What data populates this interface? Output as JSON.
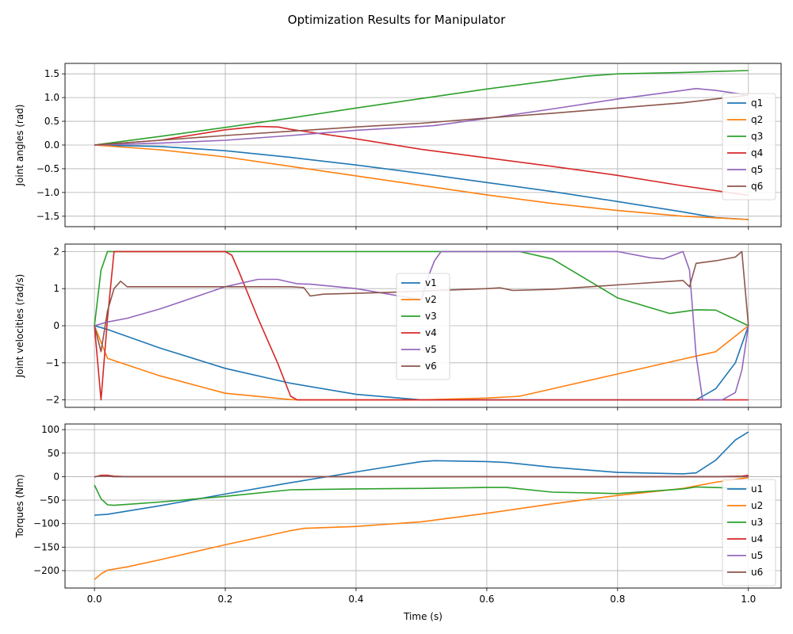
{
  "chart_data": {
    "title": "Optimization Results for Manipulator",
    "xlabel": "Time (s)",
    "panels": [
      {
        "type": "line",
        "ylabel": "Joint angles (rad)",
        "xlim": [
          -0.045,
          1.05
        ],
        "ylim": [
          -1.72,
          1.72
        ],
        "xticks": [
          0.0,
          0.2,
          0.4,
          0.6,
          0.8,
          1.0
        ],
        "xtick_labels": [
          "0.0",
          "0.2",
          "0.4",
          "0.6",
          "0.8",
          "1.0"
        ],
        "yticks": [
          -1.5,
          -1.0,
          -0.5,
          0.0,
          0.5,
          1.0,
          1.5
        ],
        "ytick_labels": [
          "−1.5",
          "−1.0",
          "−0.5",
          "0.0",
          "0.5",
          "1.0",
          "1.5"
        ],
        "show_xtick_labels": false,
        "grid": true,
        "legend_position": "right",
        "series": [
          {
            "name": "q1",
            "color": "#1f77b4",
            "x": [
              0,
              0.1,
              0.2,
              0.3,
              0.4,
              0.5,
              0.6,
              0.7,
              0.8,
              0.9,
              0.95,
              1.0
            ],
            "y": [
              0,
              -0.03,
              -0.12,
              -0.26,
              -0.42,
              -0.6,
              -0.79,
              -0.98,
              -1.19,
              -1.41,
              -1.53,
              -1.57
            ]
          },
          {
            "name": "q2",
            "color": "#ff7f0e",
            "x": [
              0,
              0.05,
              0.1,
              0.2,
              0.3,
              0.4,
              0.5,
              0.6,
              0.7,
              0.8,
              0.9,
              1.0
            ],
            "y": [
              0,
              -0.05,
              -0.1,
              -0.25,
              -0.45,
              -0.65,
              -0.85,
              -1.05,
              -1.23,
              -1.38,
              -1.5,
              -1.57
            ]
          },
          {
            "name": "q3",
            "color": "#2ca02c",
            "x": [
              0,
              0.1,
              0.2,
              0.3,
              0.4,
              0.5,
              0.6,
              0.7,
              0.75,
              0.8,
              0.9,
              1.0
            ],
            "y": [
              0,
              0.18,
              0.37,
              0.57,
              0.78,
              0.98,
              1.18,
              1.36,
              1.45,
              1.5,
              1.53,
              1.57
            ]
          },
          {
            "name": "q4",
            "color": "#d62728",
            "x": [
              0,
              0.1,
              0.2,
              0.25,
              0.28,
              0.3,
              0.4,
              0.5,
              0.6,
              0.7,
              0.8,
              0.9,
              1.0
            ],
            "y": [
              0,
              0.1,
              0.32,
              0.39,
              0.38,
              0.33,
              0.13,
              -0.09,
              -0.27,
              -0.45,
              -0.64,
              -0.86,
              -1.06
            ]
          },
          {
            "name": "q5",
            "color": "#9467bd",
            "x": [
              0,
              0.1,
              0.2,
              0.3,
              0.4,
              0.5,
              0.52,
              0.6,
              0.7,
              0.8,
              0.9,
              0.92,
              0.95,
              1.0
            ],
            "y": [
              0,
              0.04,
              0.1,
              0.2,
              0.31,
              0.39,
              0.41,
              0.56,
              0.76,
              0.97,
              1.15,
              1.19,
              1.15,
              1.05
            ]
          },
          {
            "name": "q6",
            "color": "#8c564b",
            "x": [
              0,
              0.1,
              0.2,
              0.3,
              0.4,
              0.5,
              0.6,
              0.7,
              0.8,
              0.9,
              1.0
            ],
            "y": [
              0,
              0.1,
              0.2,
              0.29,
              0.38,
              0.46,
              0.57,
              0.67,
              0.78,
              0.89,
              1.05
            ]
          }
        ]
      },
      {
        "type": "line",
        "ylabel": "Joint velocities (rad/s)",
        "xlim": [
          -0.045,
          1.05
        ],
        "ylim": [
          -2.2,
          2.2
        ],
        "xticks": [
          0.0,
          0.2,
          0.4,
          0.6,
          0.8,
          1.0
        ],
        "xtick_labels": [
          "0.0",
          "0.2",
          "0.4",
          "0.6",
          "0.8",
          "1.0"
        ],
        "yticks": [
          -2,
          -1,
          0,
          1,
          2
        ],
        "ytick_labels": [
          "−2",
          "−1",
          "0",
          "1",
          "2"
        ],
        "show_xtick_labels": false,
        "grid": true,
        "legend_position": "center",
        "series": [
          {
            "name": "v1",
            "color": "#1f77b4",
            "x": [
              0,
              0.02,
              0.1,
              0.2,
              0.3,
              0.4,
              0.5,
              0.6,
              0.8,
              0.9,
              0.92,
              0.95,
              0.98,
              1.0
            ],
            "y": [
              0,
              -0.1,
              -0.6,
              -1.15,
              -1.55,
              -1.85,
              -2.0,
              -2.0,
              -2.0,
              -2.0,
              -2.0,
              -1.7,
              -1.0,
              0
            ]
          },
          {
            "name": "v2",
            "color": "#ff7f0e",
            "x": [
              0,
              0.02,
              0.1,
              0.2,
              0.3,
              0.31,
              0.5,
              0.6,
              0.65,
              0.7,
              0.8,
              0.9,
              0.95,
              1.0
            ],
            "y": [
              0,
              -0.88,
              -1.35,
              -1.82,
              -1.99,
              -2.0,
              -2.0,
              -1.95,
              -1.9,
              -1.7,
              -1.3,
              -0.9,
              -0.7,
              0
            ]
          },
          {
            "name": "v3",
            "color": "#2ca02c",
            "x": [
              0,
              0.01,
              0.02,
              0.03,
              0.1,
              0.2,
              0.6,
              0.65,
              0.7,
              0.8,
              0.88,
              0.92,
              0.95,
              1.0
            ],
            "y": [
              0,
              1.5,
              2.0,
              2.0,
              2.0,
              2.0,
              2.0,
              2.0,
              1.8,
              0.75,
              0.33,
              0.43,
              0.42,
              0
            ]
          },
          {
            "name": "v4",
            "color": "#d62728",
            "x": [
              0,
              0.01,
              0.02,
              0.03,
              0.1,
              0.2,
              0.21,
              0.22,
              0.25,
              0.28,
              0.3,
              0.31,
              0.6,
              0.9,
              1.0
            ],
            "y": [
              0,
              -2.0,
              0.2,
              2.0,
              2.0,
              2.0,
              1.9,
              1.5,
              0.2,
              -1.0,
              -1.9,
              -2.0,
              -2.0,
              -2.0,
              -2.0
            ]
          },
          {
            "name": "v5",
            "color": "#9467bd",
            "x": [
              0,
              0.02,
              0.05,
              0.1,
              0.15,
              0.2,
              0.25,
              0.28,
              0.31,
              0.33,
              0.4,
              0.45,
              0.5,
              0.51,
              0.52,
              0.53,
              0.55,
              0.6,
              0.65,
              0.8,
              0.85,
              0.87,
              0.9,
              0.91,
              0.92,
              0.93,
              0.96,
              0.98,
              0.99,
              1.0
            ],
            "y": [
              0,
              0.1,
              0.2,
              0.45,
              0.75,
              1.05,
              1.25,
              1.25,
              1.13,
              1.12,
              1.0,
              0.85,
              0.7,
              1.3,
              1.75,
              2.0,
              2.0,
              2.0,
              2.0,
              2.0,
              1.83,
              1.8,
              2.0,
              1.5,
              -0.8,
              -2.0,
              -2.0,
              -1.8,
              -1.2,
              0
            ]
          },
          {
            "name": "v6",
            "color": "#8c564b",
            "x": [
              0,
              0.01,
              0.02,
              0.03,
              0.04,
              0.05,
              0.1,
              0.2,
              0.3,
              0.32,
              0.33,
              0.35,
              0.45,
              0.6,
              0.62,
              0.64,
              0.7,
              0.8,
              0.9,
              0.91,
              0.92,
              0.95,
              0.98,
              0.99,
              1.0
            ],
            "y": [
              0,
              -0.7,
              0.4,
              1.0,
              1.2,
              1.05,
              1.05,
              1.05,
              1.05,
              1.03,
              0.8,
              0.85,
              0.9,
              1.0,
              1.02,
              0.95,
              0.98,
              1.1,
              1.22,
              1.05,
              1.68,
              1.75,
              1.85,
              2.0,
              0
            ]
          }
        ]
      },
      {
        "type": "line",
        "ylabel": "Torques (Nm)",
        "xlabel": "Time (s)",
        "xlim": [
          -0.045,
          1.05
        ],
        "ylim": [
          -237,
          112
        ],
        "xticks": [
          0.0,
          0.2,
          0.4,
          0.6,
          0.8,
          1.0
        ],
        "xtick_labels": [
          "0.0",
          "0.2",
          "0.4",
          "0.6",
          "0.8",
          "1.0"
        ],
        "yticks": [
          -200,
          -150,
          -100,
          -50,
          0,
          50,
          100
        ],
        "ytick_labels": [
          "−200",
          "−150",
          "−100",
          "−50",
          "0",
          "50",
          "100"
        ],
        "show_xtick_labels": true,
        "grid": true,
        "legend_position": "right",
        "series": [
          {
            "name": "u1",
            "color": "#1f77b4",
            "x": [
              0,
              0.02,
              0.1,
              0.2,
              0.3,
              0.4,
              0.5,
              0.52,
              0.6,
              0.63,
              0.7,
              0.8,
              0.9,
              0.92,
              0.95,
              0.98,
              1.0
            ],
            "y": [
              -82,
              -80,
              -62,
              -37,
              -13,
              10,
              32,
              34,
              32,
              30,
              20,
              9,
              6,
              8,
              35,
              78,
              95
            ]
          },
          {
            "name": "u2",
            "color": "#ff7f0e",
            "x": [
              0,
              0.01,
              0.02,
              0.05,
              0.1,
              0.2,
              0.3,
              0.32,
              0.4,
              0.5,
              0.6,
              0.7,
              0.8,
              0.9,
              0.95,
              1.0
            ],
            "y": [
              -219,
              -207,
              -199,
              -192,
              -177,
              -145,
              -115,
              -110,
              -106,
              -96,
              -78,
              -58,
              -40,
              -25,
              -12,
              -2
            ]
          },
          {
            "name": "u3",
            "color": "#2ca02c",
            "x": [
              0,
              0.01,
              0.02,
              0.03,
              0.05,
              0.1,
              0.2,
              0.3,
              0.4,
              0.5,
              0.6,
              0.63,
              0.7,
              0.8,
              0.9,
              0.92,
              1.0
            ],
            "y": [
              -18,
              -47,
              -60,
              -61,
              -59,
              -54,
              -42,
              -28,
              -26,
              -25,
              -23,
              -23,
              -33,
              -36,
              -26,
              -22,
              -25
            ]
          },
          {
            "name": "u4",
            "color": "#d62728",
            "x": [
              0,
              0.01,
              0.02,
              0.03,
              0.05,
              0.2,
              0.5,
              0.8,
              0.95,
              0.99,
              1.0
            ],
            "y": [
              -1,
              3,
              3,
              1,
              0,
              0,
              0,
              0,
              0,
              1,
              3
            ]
          },
          {
            "name": "u5",
            "color": "#9467bd",
            "x": [
              0,
              0.01,
              0.02,
              0.03,
              0.05,
              0.2,
              0.5,
              0.8,
              0.95,
              0.99,
              1.0
            ],
            "y": [
              0,
              1,
              1,
              0,
              0,
              0,
              0,
              0,
              0,
              0,
              0
            ]
          },
          {
            "name": "u6",
            "color": "#8c564b",
            "x": [
              0,
              0.01,
              0.02,
              0.03,
              0.05,
              0.2,
              0.5,
              0.8,
              0.95,
              0.99,
              1.0
            ],
            "y": [
              0,
              1,
              1,
              0,
              0,
              0,
              0,
              0,
              0,
              0,
              1
            ]
          }
        ]
      }
    ]
  }
}
